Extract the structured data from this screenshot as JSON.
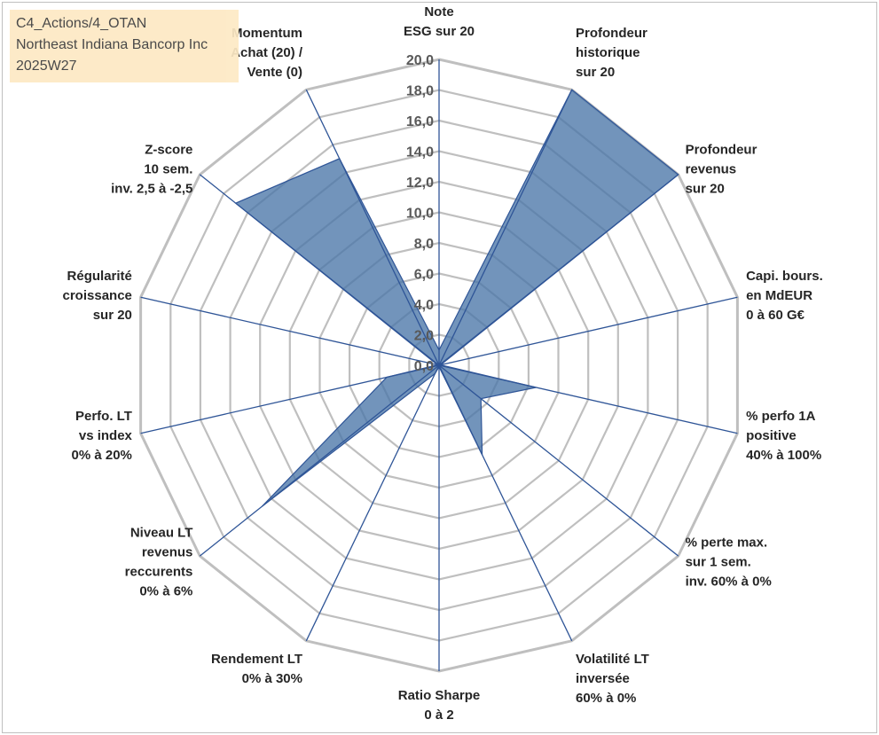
{
  "info": {
    "line1": "C4_Actions/4_OTAN",
    "line2": "Northeast Indiana Bancorp Inc",
    "line3": "2025W27"
  },
  "colors": {
    "fill": "#4a76a8",
    "axis_line": "#2f5597",
    "grid": "#bfbfbf",
    "info_bg": "#fde9c4"
  },
  "chart_data": {
    "type": "radar",
    "rmin": 0,
    "rmax": 20,
    "tick_step": 2,
    "tick_labels": [
      "0,0",
      "2,0",
      "4,0",
      "6,0",
      "8,0",
      "10,0",
      "12,0",
      "14,0",
      "16,0",
      "18,0",
      "20,0"
    ],
    "axes": [
      {
        "label": [
          "Note",
          "ESG sur 20"
        ],
        "value": 1
      },
      {
        "label": [
          "Profondeur",
          "historique",
          "sur 20"
        ],
        "value": 20
      },
      {
        "label": [
          "Profondeur",
          "revenus",
          "sur 20"
        ],
        "value": 20
      },
      {
        "label": [
          "Capi. bours.",
          "en MdEUR",
          "0 à 60 G€"
        ],
        "value": 0.1
      },
      {
        "label": [
          "% perfo 1A",
          "positive",
          "40% à 100%"
        ],
        "value": 6.5
      },
      {
        "label": [
          "% perte max.",
          "sur 1 sem.",
          "inv. 60% à 0%"
        ],
        "value": 3.5
      },
      {
        "label": [
          "Volatilité LT",
          "inversée",
          "60% à 0%"
        ],
        "value": 6.5
      },
      {
        "label": [
          "Ratio Sharpe",
          "0 à 2"
        ],
        "value": 0.1
      },
      {
        "label": [
          "Rendement LT",
          "0% à 30%"
        ],
        "value": 0.6
      },
      {
        "label": [
          "Niveau LT",
          "revenus",
          "reccurents",
          "0% à 6%"
        ],
        "value": 14.8
      },
      {
        "label": [
          "Perfo. LT",
          "vs index",
          "0% à 20%"
        ],
        "value": 3.5
      },
      {
        "label": [
          "Régularité",
          "croissance",
          "sur 20"
        ],
        "value": 0.1
      },
      {
        "label": [
          "Z-score",
          "10 sem.",
          "inv. 2,5 à -2,5"
        ],
        "value": 17
      },
      {
        "label": [
          "Momentum",
          "Achat (20) /",
          "Vente (0)"
        ],
        "value": 15
      }
    ]
  }
}
